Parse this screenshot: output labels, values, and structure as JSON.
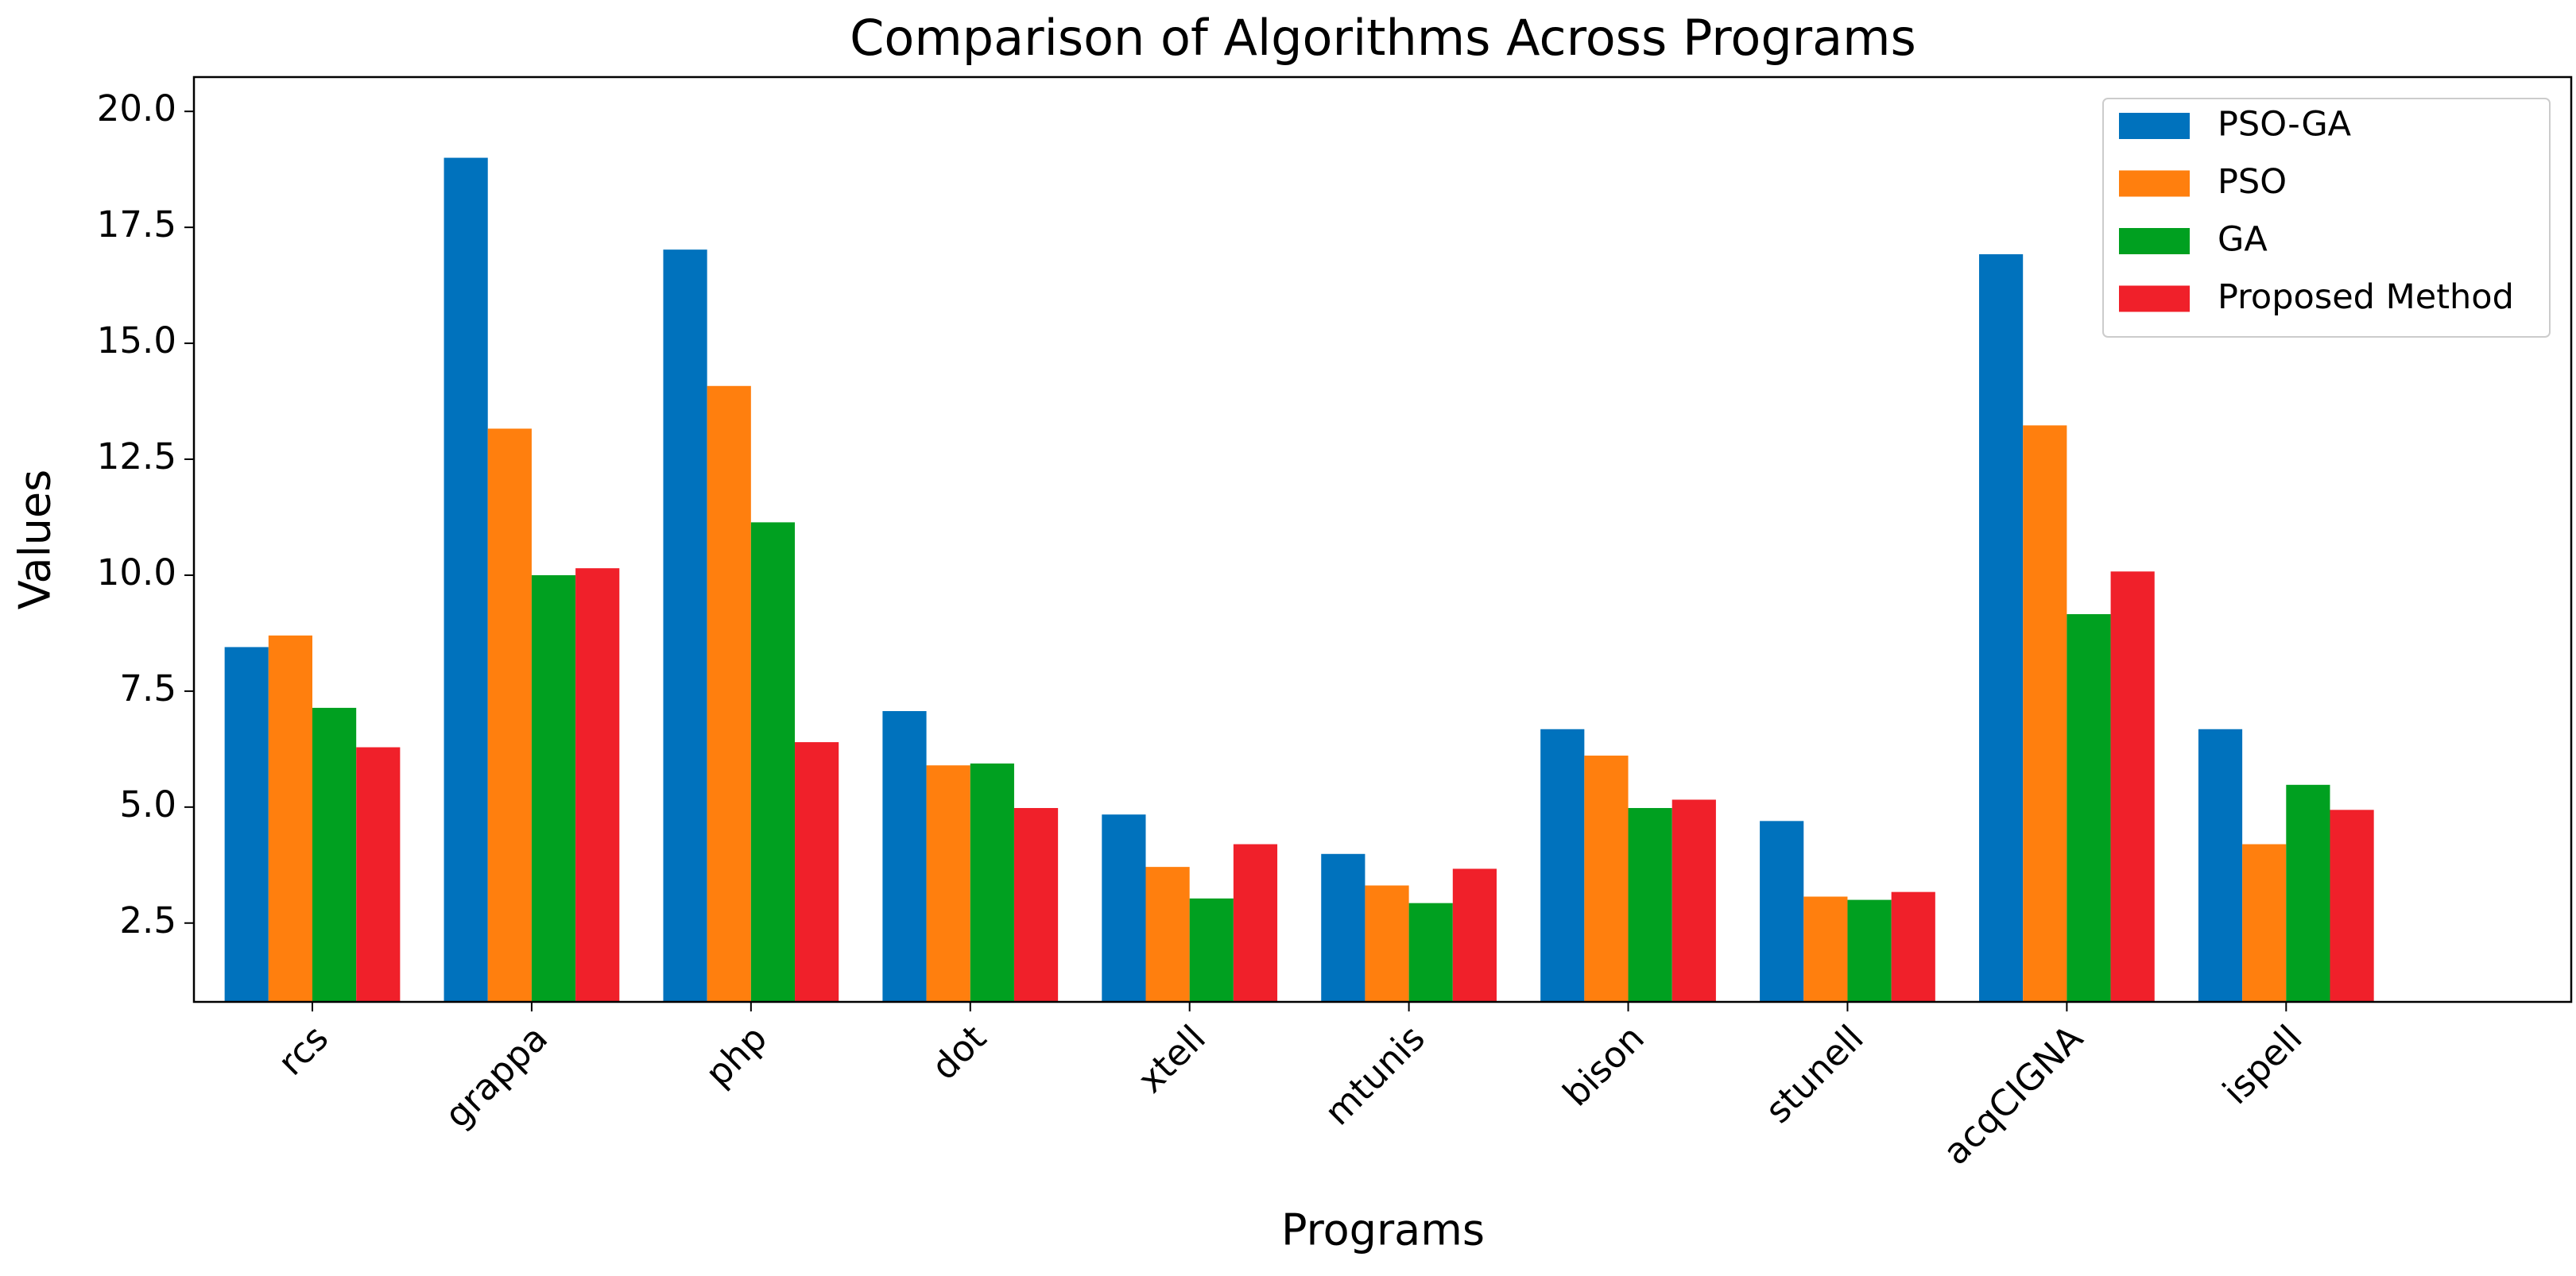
{
  "chart_data": {
    "type": "bar",
    "title": "Comparison of Algorithms Across Programs",
    "x_label": "Programs",
    "y_label": "Values",
    "categories": [
      "rcs",
      "grappa",
      "php",
      "dot",
      "xtell",
      "mtunis",
      "bison",
      "stunell",
      "acqCIGNA",
      "ispell"
    ],
    "series": [
      {
        "name": "PSO-GA",
        "color": "#0072BD",
        "values": [
          8.45,
          19.0,
          17.02,
          7.07,
          4.84,
          3.99,
          6.68,
          4.7,
          16.92,
          6.68
        ]
      },
      {
        "name": "PSO",
        "color": "#FF7F0E",
        "values": [
          8.7,
          13.16,
          14.08,
          5.9,
          3.71,
          3.31,
          6.11,
          3.07,
          13.23,
          4.2
        ]
      },
      {
        "name": "GA",
        "color": "#00A020",
        "values": [
          7.14,
          10.0,
          11.14,
          5.94,
          3.03,
          2.93,
          4.98,
          3.0,
          9.16,
          5.48
        ]
      },
      {
        "name": "Proposed Method",
        "color": "#F0202A",
        "values": [
          6.29,
          10.15,
          6.4,
          4.98,
          4.2,
          3.67,
          5.16,
          3.17,
          10.08,
          4.94
        ]
      }
    ],
    "xlim": [
      -0.54,
      10.3
    ],
    "ylim": [
      0.8,
      20.74
    ],
    "yticks": [
      {
        "value": 2.5,
        "label": "2.5"
      },
      {
        "value": 5,
        "label": "5.0"
      },
      {
        "value": 7.5,
        "label": "7.5"
      },
      {
        "value": 10,
        "label": "10.0"
      },
      {
        "value": 12.5,
        "label": "12.5"
      },
      {
        "value": 15,
        "label": "15.0"
      },
      {
        "value": 17.5,
        "label": "17.5"
      },
      {
        "value": 20,
        "label": "20.0"
      }
    ],
    "legend": "upper right",
    "grid": false
  }
}
